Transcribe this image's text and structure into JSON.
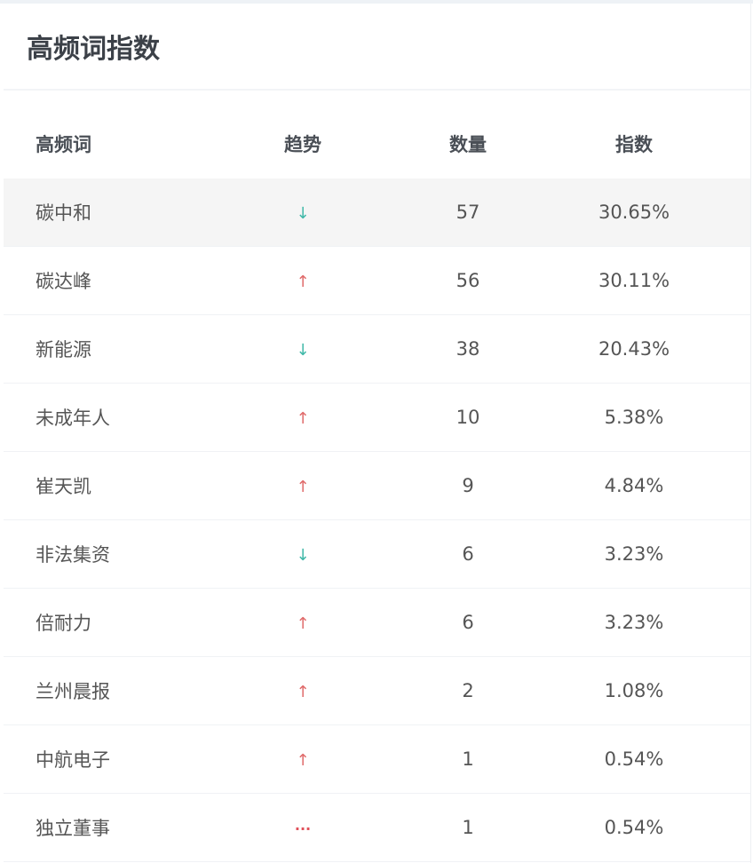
{
  "title": "高频词指数",
  "columns": [
    "高频词",
    "趋势",
    "数量",
    "指数"
  ],
  "trend_icons": {
    "up": "↑",
    "down": "↓",
    "flat": "···"
  },
  "colors": {
    "up": "#e06a6a",
    "down": "#3fb8a8",
    "flat": "#e0505a"
  },
  "rows": [
    {
      "word": "碳中和",
      "trend": "down",
      "count": "57",
      "index": "30.65%"
    },
    {
      "word": "碳达峰",
      "trend": "up",
      "count": "56",
      "index": "30.11%"
    },
    {
      "word": "新能源",
      "trend": "down",
      "count": "38",
      "index": "20.43%"
    },
    {
      "word": "未成年人",
      "trend": "up",
      "count": "10",
      "index": "5.38%"
    },
    {
      "word": "崔天凯",
      "trend": "up",
      "count": "9",
      "index": "4.84%"
    },
    {
      "word": "非法集资",
      "trend": "down",
      "count": "6",
      "index": "3.23%"
    },
    {
      "word": "倍耐力",
      "trend": "up",
      "count": "6",
      "index": "3.23%"
    },
    {
      "word": "兰州晨报",
      "trend": "up",
      "count": "2",
      "index": "1.08%"
    },
    {
      "word": "中航电子",
      "trend": "up",
      "count": "1",
      "index": "0.54%"
    },
    {
      "word": "独立董事",
      "trend": "flat",
      "count": "1",
      "index": "0.54%"
    }
  ]
}
